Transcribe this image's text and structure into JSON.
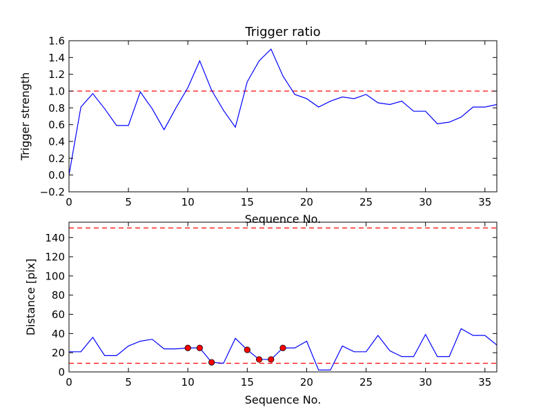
{
  "chart_data": [
    {
      "type": "line",
      "title": "Trigger ratio",
      "xlabel": "Sequence No.",
      "ylabel": "Trigger strength",
      "xlim": [
        0,
        36
      ],
      "ylim": [
        -0.2,
        1.6
      ],
      "xticks": [
        0,
        5,
        10,
        15,
        20,
        25,
        30,
        35
      ],
      "yticks": [
        -0.2,
        0.0,
        0.2,
        0.4,
        0.6,
        0.8,
        1.0,
        1.2,
        1.4,
        1.6
      ],
      "xtick_labels": [
        "0",
        "5",
        "10",
        "15",
        "20",
        "25",
        "30",
        "35"
      ],
      "ytick_labels": [
        "−0.2",
        "0.0",
        "0.2",
        "0.4",
        "0.6",
        "0.8",
        "1.0",
        "1.2",
        "1.4",
        "1.6"
      ],
      "grid": false,
      "series": [
        {
          "color": "#0000ff",
          "x": [
            0,
            1,
            2,
            3,
            4,
            5,
            6,
            7,
            8,
            9,
            10,
            11,
            12,
            13,
            14,
            15,
            16,
            17,
            18,
            19,
            20,
            21,
            22,
            23,
            24,
            25,
            26,
            27,
            28,
            29,
            30,
            31,
            32,
            33,
            34,
            35,
            36
          ],
          "values": [
            0.0,
            0.81,
            0.97,
            0.79,
            0.59,
            0.59,
            0.99,
            0.79,
            0.54,
            0.8,
            1.04,
            1.36,
            1.01,
            0.77,
            0.57,
            1.11,
            1.36,
            1.5,
            1.18,
            0.96,
            0.91,
            0.81,
            0.88,
            0.93,
            0.91,
            0.96,
            0.86,
            0.84,
            0.88,
            0.76,
            0.76,
            0.61,
            0.63,
            0.69,
            0.81,
            0.81,
            0.84
          ]
        }
      ],
      "reference_lines": [
        {
          "y": 1.0,
          "color": "#ff0000",
          "style": "dashed"
        }
      ]
    },
    {
      "type": "line",
      "title": "",
      "xlabel": "Sequence No.",
      "ylabel": "Distance [pix]",
      "xlim": [
        0,
        36
      ],
      "ylim": [
        0,
        156
      ],
      "xticks": [
        0,
        5,
        10,
        15,
        20,
        25,
        30,
        35
      ],
      "yticks": [
        0,
        20,
        40,
        60,
        80,
        100,
        120,
        140
      ],
      "xtick_labels": [
        "0",
        "5",
        "10",
        "15",
        "20",
        "25",
        "30",
        "35"
      ],
      "ytick_labels": [
        "0",
        "20",
        "40",
        "60",
        "80",
        "100",
        "120",
        "140"
      ],
      "grid": false,
      "series": [
        {
          "color": "#0000ff",
          "x": [
            0,
            1,
            2,
            3,
            4,
            5,
            6,
            7,
            8,
            9,
            10,
            11,
            12,
            13,
            14,
            15,
            16,
            17,
            18,
            19,
            20,
            21,
            22,
            23,
            24,
            25,
            26,
            27,
            28,
            29,
            30,
            31,
            32,
            33,
            34,
            35,
            36
          ],
          "values": [
            21,
            21,
            36,
            17,
            17,
            27,
            32,
            34,
            24,
            24,
            25,
            25,
            10,
            9,
            35,
            23,
            13,
            13,
            25,
            25,
            32,
            2,
            2,
            27,
            21,
            21,
            38,
            22,
            16,
            16,
            39,
            16,
            16,
            45,
            38,
            38,
            28
          ]
        }
      ],
      "markers": {
        "color": "#ff0000",
        "x": [
          10,
          11,
          12,
          15,
          16,
          17,
          18
        ],
        "values": [
          25,
          25,
          10,
          23,
          13,
          13,
          25
        ]
      },
      "reference_lines": [
        {
          "y": 150,
          "color": "#ff0000",
          "style": "dashed"
        },
        {
          "y": 9,
          "color": "#ff0000",
          "style": "dashed"
        }
      ]
    }
  ]
}
